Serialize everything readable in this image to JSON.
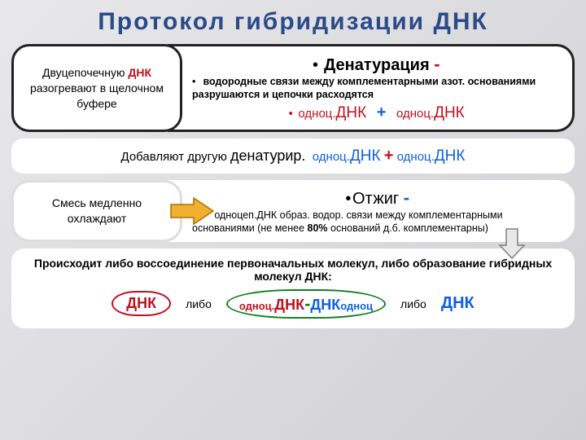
{
  "colors": {
    "title": "#2a4a8a",
    "red": "#c01020",
    "blue": "#1060e0",
    "green": "#108020",
    "black": "#1a1a1a",
    "arrow_fill": "#f0b030",
    "arrow_stroke": "#b07000",
    "arrow2_fill": "#e8e8e8",
    "arrow2_stroke": "#808080",
    "oval_red": "#c01020",
    "oval_green": "#108020"
  },
  "title": "Протокол  гибридизации  ДНК",
  "step1": {
    "left_pre": "Двуцепочечную ",
    "left_dnk": "ДНК",
    "left_post": " разогревают в щелочном буфере",
    "head": "Денатурация ",
    "dash": "-",
    "body": "водородные связи между комплементарными азот. основаниями разрушаются и цепочки расходятся",
    "ss1": "одноц.",
    "dnk": "ДНК",
    "plus": "+",
    "ss2": "одноц.",
    "dnk2": "ДНК"
  },
  "mid": {
    "pre": "Добавляют другую ",
    "den": "денатурир.",
    "ss1": "одноц.",
    "dnk1": "ДНК",
    "plus": "+",
    "ss2": "одноц.",
    "dnk2": "ДНК"
  },
  "step2": {
    "left": "Смесь медленно охлаждают",
    "head": "Отжиг ",
    "dash": "-",
    "body_pre": "одноцеп.ДНК образ. водор. связи между комплементарными основаниями (не менее ",
    "pct": "80%",
    "body_post": " оснований д.б. комплементарны)"
  },
  "conclusion": {
    "line1": "Происходит либо  воссоединение первоначальных молекул, либо образование гибридных молекул ДНК:",
    "dnk_left": "ДНК",
    "libo": "либо",
    "mid_ss": "одноц.",
    "mid_dnk1": "ДНК",
    "mid_dash": "-",
    "mid_dnk2": "ДНК",
    "mid_ss2": "одноц",
    "dnk_right": "ДНК"
  }
}
